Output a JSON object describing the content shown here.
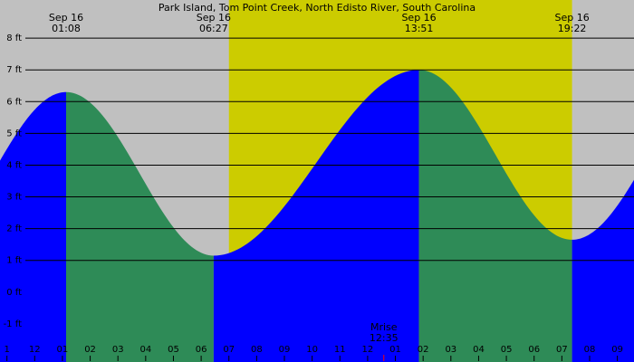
{
  "chart_data": {
    "type": "area",
    "title": "Park Island, Tom Point Creek, North Edisto River, South Carolina",
    "xlabel": "",
    "ylabel": "",
    "y_unit": "ft",
    "ylim": [
      -2.2,
      9.2
    ],
    "xlim_hours": [
      -1.25,
      21.6
    ],
    "y_ticks": [
      {
        "value": 8,
        "label": "8 ft"
      },
      {
        "value": 7,
        "label": "7 ft"
      },
      {
        "value": 6,
        "label": "6 ft"
      },
      {
        "value": 5,
        "label": "5 ft"
      },
      {
        "value": 4,
        "label": "4 ft"
      },
      {
        "value": 3,
        "label": "3 ft"
      },
      {
        "value": 2,
        "label": "2 ft"
      },
      {
        "value": 1,
        "label": "1 ft"
      },
      {
        "value": 0,
        "label": "0 ft"
      },
      {
        "value": -1,
        "label": "-1 ft"
      }
    ],
    "x_ticks": [
      {
        "hour": -1,
        "label": "1"
      },
      {
        "hour": 0,
        "label": "12"
      },
      {
        "hour": 1,
        "label": "01"
      },
      {
        "hour": 2,
        "label": "02"
      },
      {
        "hour": 3,
        "label": "03"
      },
      {
        "hour": 4,
        "label": "04"
      },
      {
        "hour": 5,
        "label": "05"
      },
      {
        "hour": 6,
        "label": "06"
      },
      {
        "hour": 7,
        "label": "07"
      },
      {
        "hour": 8,
        "label": "08"
      },
      {
        "hour": 9,
        "label": "09"
      },
      {
        "hour": 10,
        "label": "10"
      },
      {
        "hour": 11,
        "label": "11"
      },
      {
        "hour": 12,
        "label": "12"
      },
      {
        "hour": 13,
        "label": "01"
      },
      {
        "hour": 14,
        "label": "02"
      },
      {
        "hour": 15,
        "label": "03"
      },
      {
        "hour": 16,
        "label": "04"
      },
      {
        "hour": 17,
        "label": "05"
      },
      {
        "hour": 18,
        "label": "06"
      },
      {
        "hour": 19,
        "label": "07"
      },
      {
        "hour": 20,
        "label": "08"
      },
      {
        "hour": 21,
        "label": "09"
      }
    ],
    "tide_events": [
      {
        "date": "Sep 16",
        "time": "01:08",
        "hour": 1.133,
        "height": 6.3,
        "type": "high"
      },
      {
        "date": "Sep 16",
        "time": "06:27",
        "hour": 6.45,
        "height": 1.15,
        "type": "low"
      },
      {
        "date": "Sep 16",
        "time": "13:51",
        "hour": 13.85,
        "height": 7.0,
        "type": "high"
      },
      {
        "date": "Sep 16",
        "time": "19:22",
        "hour": 19.367,
        "height": 1.65,
        "type": "low"
      }
    ],
    "daylight": {
      "start_hour": 7.0,
      "end_hour": 19.367
    },
    "moon": {
      "label": "Mrise",
      "time": "12:35",
      "hour": 12.583
    },
    "series_colors": {
      "rising": "#0000ff",
      "falling": "#2e8b57",
      "daylight": "#cccc00",
      "night": "#c0c0c0"
    }
  }
}
